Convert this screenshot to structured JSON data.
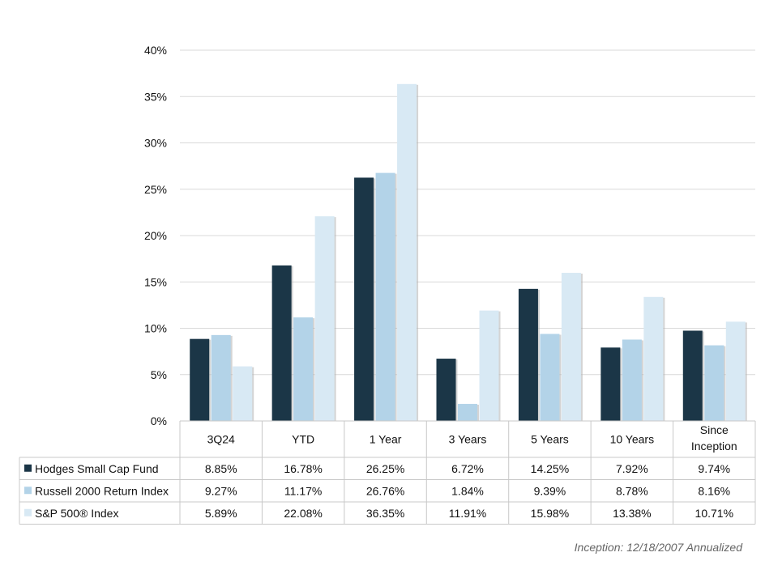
{
  "chart_data": {
    "type": "bar",
    "categories": [
      "3Q24",
      "YTD",
      "1 Year",
      "3 Years",
      "5 Years",
      "10 Years",
      "Since Inception"
    ],
    "series": [
      {
        "name": "Hodges Small Cap Fund",
        "color": "#1b3647",
        "values": [
          8.85,
          16.78,
          26.25,
          6.72,
          14.25,
          7.92,
          9.74
        ]
      },
      {
        "name": "Russell 2000 Return Index",
        "color": "#b3d3e8",
        "values": [
          9.27,
          11.17,
          26.76,
          1.84,
          9.39,
          8.78,
          8.16
        ]
      },
      {
        "name": "S&P 500® Index",
        "color": "#d8e9f4",
        "values": [
          5.89,
          22.08,
          36.35,
          11.91,
          15.98,
          13.38,
          10.71
        ]
      }
    ],
    "value_labels": [
      [
        "8.85%",
        "16.78%",
        "26.25%",
        "6.72%",
        "14.25%",
        "7.92%",
        "9.74%"
      ],
      [
        "9.27%",
        "11.17%",
        "26.76%",
        "1.84%",
        "9.39%",
        "8.78%",
        "8.16%"
      ],
      [
        "5.89%",
        "22.08%",
        "36.35%",
        "11.91%",
        "15.98%",
        "13.38%",
        "10.71%"
      ]
    ],
    "yticks": [
      "0%",
      "5%",
      "10%",
      "15%",
      "20%",
      "25%",
      "30%",
      "35%",
      "40%"
    ],
    "ylim": [
      0,
      40
    ],
    "grid": true,
    "legend": "data-table-below"
  },
  "footnote": "Inception: 12/18/2007 Annualized"
}
